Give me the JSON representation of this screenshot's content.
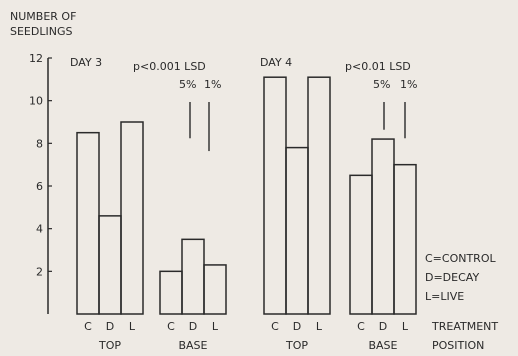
{
  "chart_data": {
    "type": "bar",
    "ylabel": "NUMBER OF SEEDLINGS",
    "ylim": [
      0,
      12
    ],
    "yticks": [
      2,
      4,
      6,
      8,
      10,
      12
    ],
    "axis_label_treatment": "TREATMENT",
    "axis_label_position": "POSITION",
    "bar_codes": [
      "C",
      "D",
      "L"
    ],
    "legend": [
      "C=CONTROL",
      "D=DECAY",
      "L=LIVE"
    ],
    "panels": [
      {
        "title": "DAY 3",
        "significance": "p<0.001",
        "lsd_label": "LSD",
        "lsd_5_label": "5%",
        "lsd_1_label": "1%",
        "lsd_5": 1.7,
        "lsd_1": 2.3,
        "groups": [
          {
            "name": "TOP",
            "values": [
              8.5,
              4.6,
              9.0
            ]
          },
          {
            "name": "BASE",
            "values": [
              2.0,
              3.5,
              2.3
            ]
          }
        ]
      },
      {
        "title": "DAY 4",
        "significance": "p<0.01",
        "lsd_label": "LSD",
        "lsd_5_label": "5%",
        "lsd_1_label": "1%",
        "lsd_5": 1.3,
        "lsd_1": 1.7,
        "groups": [
          {
            "name": "TOP",
            "values": [
              11.1,
              7.8,
              11.1
            ]
          },
          {
            "name": "BASE",
            "values": [
              6.5,
              8.2,
              7.0
            ]
          }
        ]
      }
    ]
  }
}
